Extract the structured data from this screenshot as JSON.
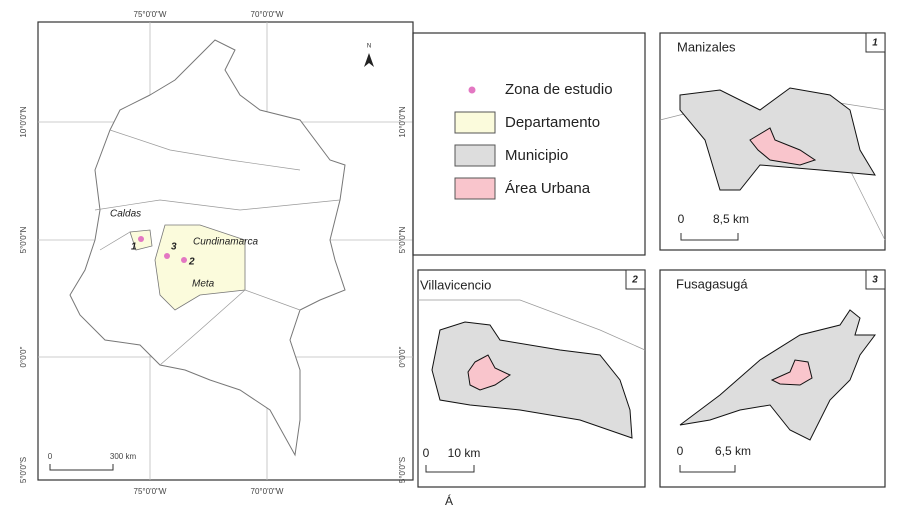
{
  "main_map": {
    "top_labels": [
      "75°0'0\"W",
      "70°0'0\"W"
    ],
    "bottom_labels": [
      "75°0'0\"W",
      "70°0'0\"W"
    ],
    "left_labels": [
      "10°0'0\"N",
      "5°0'0\"N",
      "0°0'0\"",
      "5°0'0\"S"
    ],
    "right_labels": [
      "10°0'0\"N",
      "5°0'0\"N",
      "0°0'0\"",
      "5°0'0\"S"
    ],
    "north": "N",
    "places": [
      "Caldas",
      "Cundinamarca",
      "Meta"
    ],
    "study_numbers": [
      "1",
      "3",
      "2"
    ],
    "scale": [
      "0",
      "300 km"
    ]
  },
  "legend": {
    "items": [
      "Zona de estudio",
      "Departamento",
      "Municipio",
      "Área Urbana"
    ]
  },
  "insets": [
    {
      "title": "Manizales",
      "number": "1",
      "scale": [
        "0",
        "8,5 km"
      ]
    },
    {
      "title": "Villavicencio",
      "number": "2",
      "scale": [
        "0",
        "10 km"
      ]
    },
    {
      "title": "Fusagasugá",
      "number": "3",
      "scale": [
        "0",
        "6,5 km"
      ]
    }
  ],
  "caption": "Á"
}
